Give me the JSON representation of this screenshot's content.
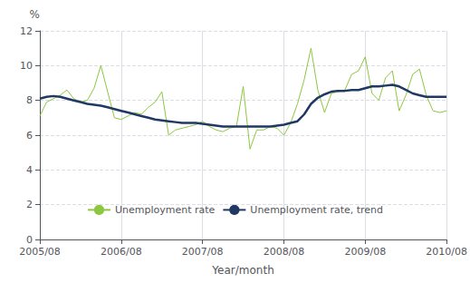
{
  "chart_data": {
    "type": "line",
    "xlabel": "Year/month",
    "ylabel": "%",
    "categories": [
      "2005/08",
      null,
      null,
      null,
      null,
      null,
      null,
      null,
      null,
      null,
      null,
      null,
      "2006/08",
      null,
      null,
      null,
      null,
      null,
      null,
      null,
      null,
      null,
      null,
      null,
      "2007/08",
      null,
      null,
      null,
      null,
      null,
      null,
      null,
      null,
      null,
      null,
      null,
      "2008/08",
      null,
      null,
      null,
      null,
      null,
      null,
      null,
      null,
      null,
      null,
      null,
      "2009/08",
      null,
      null,
      null,
      null,
      null,
      null,
      null,
      null,
      null,
      null,
      null,
      "2010/08"
    ],
    "series": [
      {
        "name": "Unemployment rate",
        "color": "#8dc63f",
        "values": [
          7.1,
          7.9,
          8.1,
          8.3,
          8.6,
          8.1,
          7.9,
          8.0,
          8.7,
          10.0,
          8.5,
          7.0,
          6.9,
          7.1,
          7.3,
          7.2,
          7.6,
          7.9,
          8.5,
          6.0,
          6.3,
          6.4,
          6.5,
          6.6,
          6.8,
          6.5,
          6.3,
          6.2,
          6.4,
          6.5,
          8.8,
          5.2,
          6.3,
          6.3,
          6.5,
          6.4,
          6.0,
          6.7,
          7.8,
          9.2,
          11.0,
          8.6,
          7.3,
          8.4,
          8.5,
          8.6,
          9.5,
          9.7,
          10.5,
          8.4,
          8.0,
          9.3,
          9.7,
          7.4,
          8.3,
          9.5,
          9.8,
          8.3,
          7.4,
          7.3,
          7.4
        ]
      },
      {
        "name": "Unemployment rate, trend",
        "color": "#1f3864",
        "values": [
          8.1,
          8.2,
          8.25,
          8.2,
          8.1,
          8.0,
          7.9,
          7.8,
          7.75,
          7.7,
          7.6,
          7.5,
          7.4,
          7.3,
          7.2,
          7.1,
          7.0,
          6.9,
          6.85,
          6.8,
          6.75,
          6.7,
          6.7,
          6.7,
          6.65,
          6.6,
          6.55,
          6.5,
          6.5,
          6.5,
          6.5,
          6.5,
          6.5,
          6.5,
          6.5,
          6.55,
          6.6,
          6.7,
          6.8,
          7.2,
          7.8,
          8.15,
          8.35,
          8.5,
          8.55,
          8.55,
          8.6,
          8.6,
          8.7,
          8.8,
          8.8,
          8.85,
          8.9,
          8.8,
          8.6,
          8.4,
          8.3,
          8.2,
          8.2,
          8.2,
          8.2
        ]
      }
    ],
    "ylim": [
      0,
      12
    ],
    "yticks": [
      0,
      2,
      4,
      6,
      8,
      10,
      12
    ],
    "grid": true,
    "legend": "lower center"
  }
}
